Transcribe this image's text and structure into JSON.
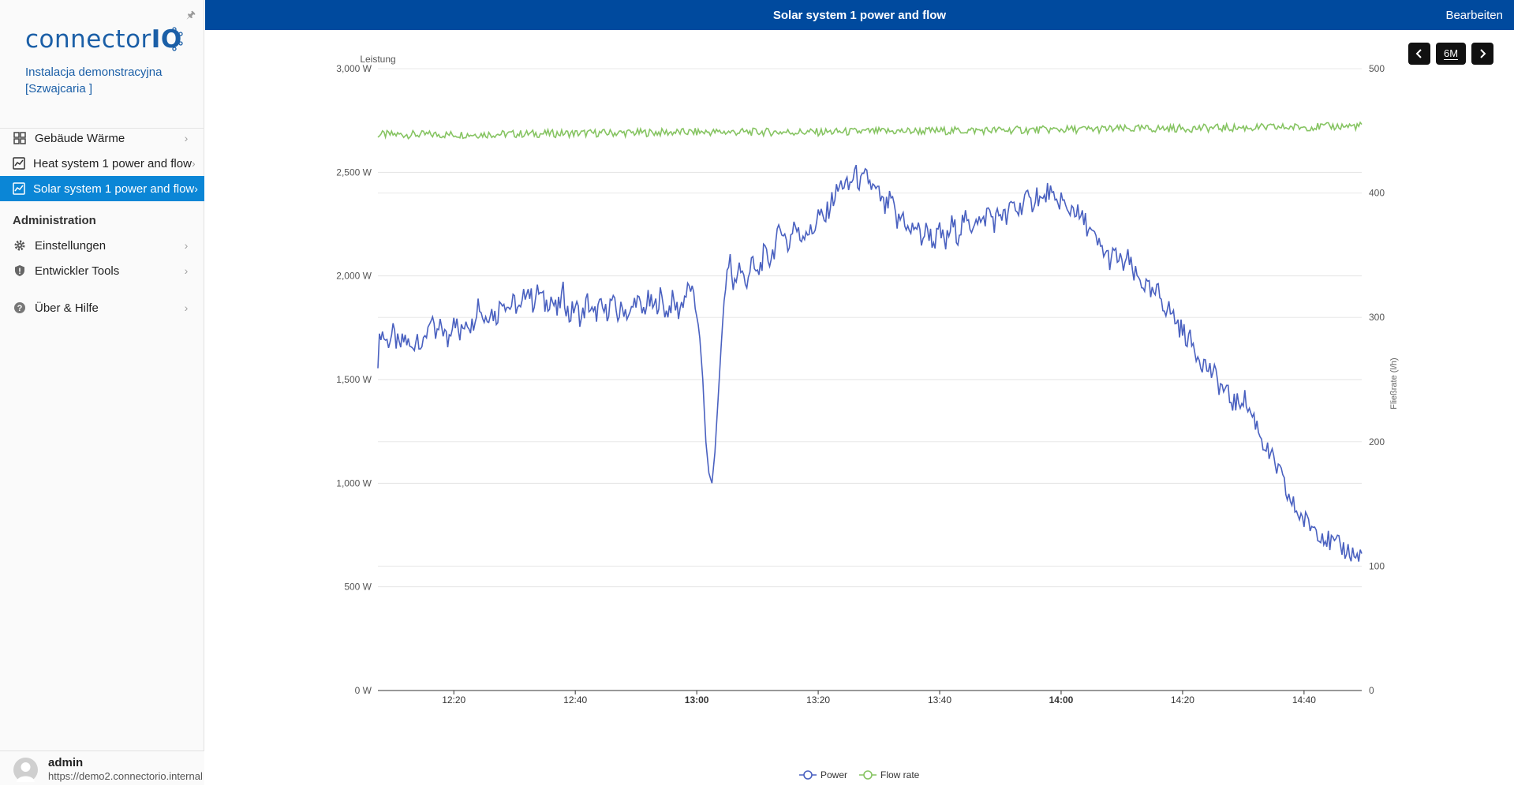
{
  "sidebar": {
    "logo": {
      "text_main": "connector",
      "text_io": "IO"
    },
    "site_name": "Instalacja demonstracyjna [Szwajcaria ]",
    "items": [
      {
        "label": "Gebäude Wärme",
        "icon": "dashboard-grid-icon"
      },
      {
        "label": "Heat system 1 power and flow",
        "icon": "chart-icon"
      },
      {
        "label": "Solar system 1 power and flow",
        "icon": "chart-icon",
        "active": true
      }
    ],
    "admin_title": "Administration",
    "admin_items": [
      {
        "label": "Einstellungen",
        "icon": "gear-icon"
      },
      {
        "label": "Entwickler Tools",
        "icon": "shield-icon"
      }
    ],
    "help_item": {
      "label": "Über & Hilfe",
      "icon": "help-icon"
    },
    "user": {
      "name": "admin",
      "url": "https://demo2.connectorio.internal"
    }
  },
  "header": {
    "title": "Solar system 1 power and flow",
    "edit_label": "Bearbeiten"
  },
  "controls": {
    "range_label": "6M"
  },
  "colors": {
    "topbar": "#004a9e",
    "active": "#0b86d6",
    "power": "#4a61c0",
    "flow": "#86c462"
  },
  "chart_data": {
    "type": "line",
    "left_axis_title": "Leistung",
    "right_axis_title": "Fließrate (l/h)",
    "x_ticks": [
      {
        "label": "12:20",
        "bold": false,
        "t": 20
      },
      {
        "label": "12:40",
        "bold": false,
        "t": 40
      },
      {
        "label": "13:00",
        "bold": true,
        "t": 60
      },
      {
        "label": "13:20",
        "bold": false,
        "t": 80
      },
      {
        "label": "13:40",
        "bold": false,
        "t": 100
      },
      {
        "label": "14:00",
        "bold": true,
        "t": 120
      },
      {
        "label": "14:20",
        "bold": false,
        "t": 140
      },
      {
        "label": "14:40",
        "bold": false,
        "t": 160
      }
    ],
    "y_left_ticks": [
      "0 W",
      "500 W",
      "1,000 W",
      "1,500 W",
      "2,000 W",
      "2,500 W",
      "3,000 W"
    ],
    "y_left_range": [
      0,
      3000
    ],
    "y_right_ticks": [
      "0",
      "100",
      "200",
      "300",
      "400",
      "500"
    ],
    "y_right_range": [
      0,
      500
    ],
    "grid": true,
    "legend_position": "bottom-center",
    "series": [
      {
        "name": "Power",
        "axis": "left",
        "color": "#4a61c0",
        "points": [
          [
            7.5,
            1610
          ],
          [
            8,
            1740
          ],
          [
            9,
            1680
          ],
          [
            10,
            1720
          ],
          [
            11,
            1650
          ],
          [
            12,
            1700
          ],
          [
            13,
            1640
          ],
          [
            14,
            1720
          ],
          [
            15,
            1650
          ],
          [
            16,
            1800
          ],
          [
            17,
            1700
          ],
          [
            18,
            1760
          ],
          [
            19,
            1680
          ],
          [
            20,
            1820
          ],
          [
            21,
            1700
          ],
          [
            22,
            1800
          ],
          [
            23,
            1760
          ],
          [
            24,
            1880
          ],
          [
            25,
            1790
          ],
          [
            26,
            1840
          ],
          [
            27,
            1800
          ],
          [
            28,
            1900
          ],
          [
            29,
            1850
          ],
          [
            30,
            1870
          ],
          [
            31,
            1820
          ],
          [
            32,
            1960
          ],
          [
            33,
            1870
          ],
          [
            34,
            1930
          ],
          [
            35,
            1860
          ],
          [
            36,
            1900
          ],
          [
            37,
            1820
          ],
          [
            38,
            1920
          ],
          [
            39,
            1800
          ],
          [
            40,
            1860
          ],
          [
            41,
            1790
          ],
          [
            42,
            1880
          ],
          [
            43,
            1800
          ],
          [
            44,
            1850
          ],
          [
            45,
            1820
          ],
          [
            46,
            1880
          ],
          [
            47,
            1810
          ],
          [
            48,
            1850
          ],
          [
            49,
            1800
          ],
          [
            50,
            1900
          ],
          [
            51,
            1820
          ],
          [
            52,
            1880
          ],
          [
            53,
            1840
          ],
          [
            54,
            1900
          ],
          [
            55,
            1820
          ],
          [
            56,
            1880
          ],
          [
            57,
            1830
          ],
          [
            58,
            1900
          ],
          [
            59,
            1950
          ],
          [
            59.5,
            1870
          ],
          [
            60,
            1830
          ],
          [
            60.5,
            1700
          ],
          [
            61,
            1500
          ],
          [
            61.5,
            1200
          ],
          [
            62,
            1050
          ],
          [
            62.5,
            1000
          ],
          [
            63,
            1150
          ],
          [
            63.5,
            1400
          ],
          [
            64,
            1650
          ],
          [
            64.5,
            1880
          ],
          [
            65,
            1990
          ],
          [
            65.5,
            2080
          ],
          [
            66,
            1950
          ],
          [
            67,
            2050
          ],
          [
            68,
            1960
          ],
          [
            69,
            2060
          ],
          [
            70,
            2000
          ],
          [
            71,
            2100
          ],
          [
            72,
            2080
          ],
          [
            73,
            2150
          ],
          [
            74,
            2250
          ],
          [
            75,
            2130
          ],
          [
            76,
            2260
          ],
          [
            77,
            2180
          ],
          [
            78,
            2230
          ],
          [
            79,
            2200
          ],
          [
            80,
            2300
          ],
          [
            81,
            2260
          ],
          [
            82,
            2350
          ],
          [
            83,
            2400
          ],
          [
            84,
            2450
          ],
          [
            85,
            2420
          ],
          [
            86,
            2500
          ],
          [
            87,
            2440
          ],
          [
            88,
            2480
          ],
          [
            89,
            2420
          ],
          [
            90,
            2390
          ],
          [
            91,
            2320
          ],
          [
            92,
            2370
          ],
          [
            93,
            2250
          ],
          [
            94,
            2300
          ],
          [
            95,
            2200
          ],
          [
            96,
            2250
          ],
          [
            97,
            2180
          ],
          [
            98,
            2230
          ],
          [
            99,
            2160
          ],
          [
            100,
            2210
          ],
          [
            101,
            2150
          ],
          [
            102,
            2250
          ],
          [
            103,
            2200
          ],
          [
            104,
            2280
          ],
          [
            105,
            2220
          ],
          [
            106,
            2300
          ],
          [
            107,
            2240
          ],
          [
            108,
            2320
          ],
          [
            109,
            2260
          ],
          [
            110,
            2310
          ],
          [
            111,
            2270
          ],
          [
            112,
            2350
          ],
          [
            113,
            2310
          ],
          [
            114,
            2380
          ],
          [
            115,
            2340
          ],
          [
            116,
            2400
          ],
          [
            117,
            2350
          ],
          [
            118,
            2420
          ],
          [
            119,
            2330
          ],
          [
            120,
            2380
          ],
          [
            121,
            2300
          ],
          [
            122,
            2340
          ],
          [
            123,
            2280
          ],
          [
            124,
            2260
          ],
          [
            125,
            2200
          ],
          [
            126,
            2150
          ],
          [
            127,
            2120
          ],
          [
            128,
            2080
          ],
          [
            129,
            2100
          ],
          [
            130,
            2050
          ],
          [
            131,
            2080
          ],
          [
            132,
            2000
          ],
          [
            133,
            1980
          ],
          [
            134,
            1950
          ],
          [
            135,
            1900
          ],
          [
            136,
            1920
          ],
          [
            137,
            1860
          ],
          [
            138,
            1830
          ],
          [
            139,
            1780
          ],
          [
            140,
            1730
          ],
          [
            141,
            1700
          ],
          [
            142,
            1650
          ],
          [
            143,
            1600
          ],
          [
            144,
            1560
          ],
          [
            145,
            1530
          ],
          [
            146,
            1480
          ],
          [
            147,
            1440
          ],
          [
            148,
            1400
          ],
          [
            149,
            1380
          ],
          [
            150,
            1420
          ],
          [
            151,
            1350
          ],
          [
            152,
            1300
          ],
          [
            153,
            1220
          ],
          [
            154,
            1150
          ],
          [
            155,
            1100
          ],
          [
            156,
            1050
          ],
          [
            157,
            960
          ],
          [
            158,
            900
          ],
          [
            159,
            860
          ],
          [
            160,
            820
          ],
          [
            161,
            800
          ],
          [
            162,
            780
          ],
          [
            163,
            760
          ],
          [
            164,
            720
          ],
          [
            165,
            700
          ],
          [
            166,
            690
          ],
          [
            167,
            680
          ],
          [
            168,
            660
          ],
          [
            169,
            640
          ],
          [
            169.5,
            660
          ]
        ]
      },
      {
        "name": "Flow rate",
        "axis": "right",
        "color": "#86c462",
        "points": [
          [
            7.5,
            447
          ],
          [
            20,
            447
          ],
          [
            40,
            448
          ],
          [
            60,
            449
          ],
          [
            80,
            449
          ],
          [
            100,
            450
          ],
          [
            120,
            451
          ],
          [
            140,
            452
          ],
          [
            160,
            453
          ],
          [
            169.5,
            454
          ]
        ]
      }
    ]
  }
}
